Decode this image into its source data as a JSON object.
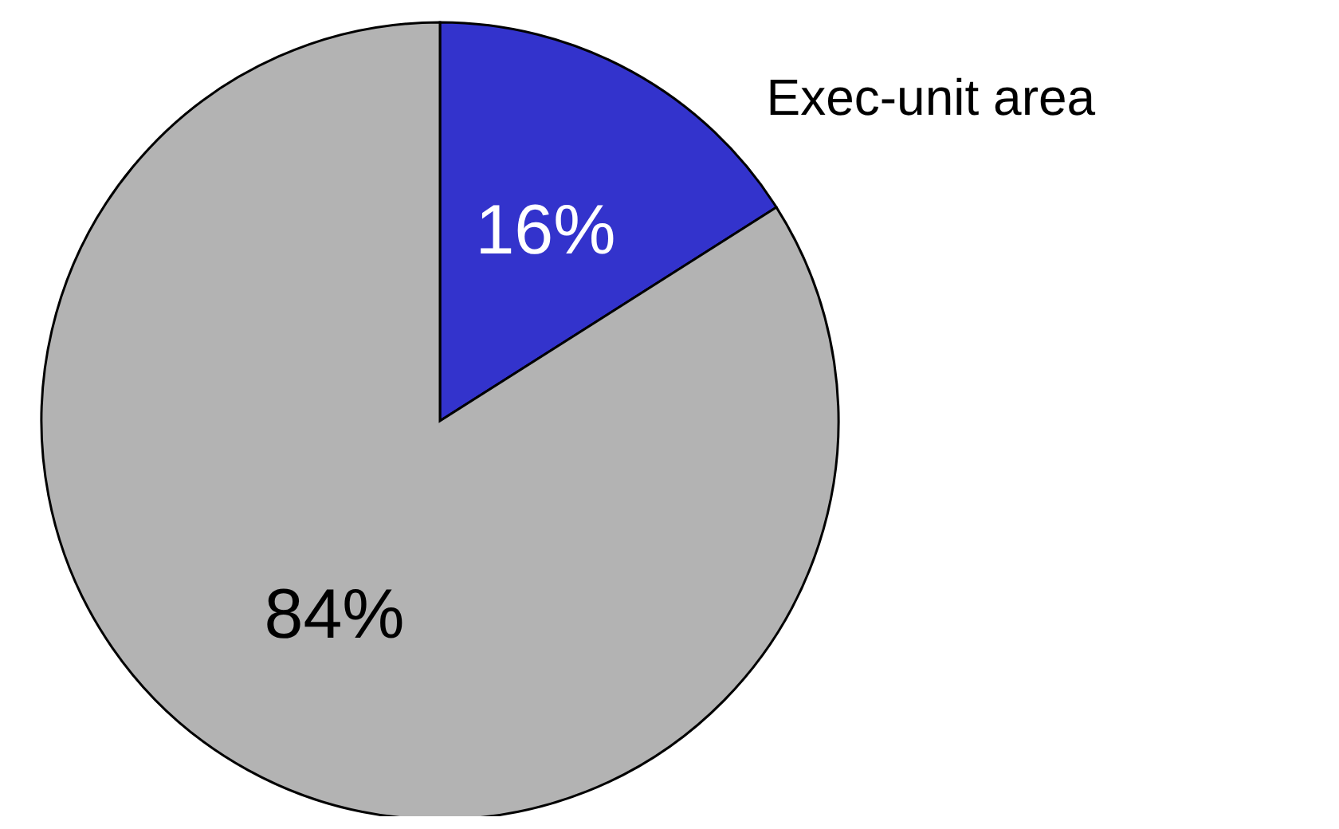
{
  "chart_data": {
    "type": "pie",
    "categories": [
      "Exec-unit area",
      null
    ],
    "values": [
      16,
      84
    ],
    "colors": [
      "#3333cc",
      "#b3b3b3"
    ],
    "value_labels": [
      "16%",
      "84%"
    ]
  }
}
